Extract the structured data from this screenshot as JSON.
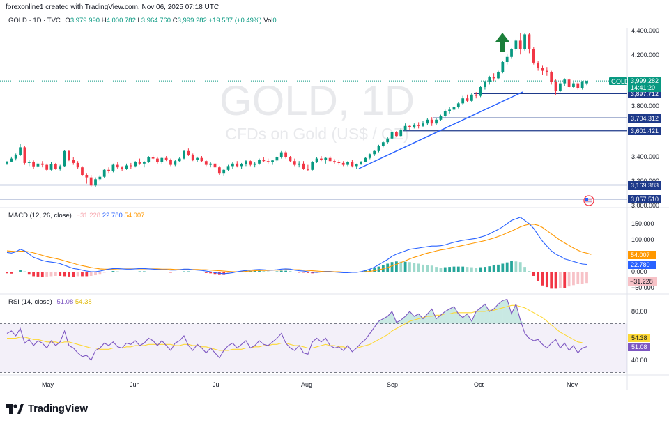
{
  "header": {
    "credit": "forexonline1 created with TradingView.com, Nov 06, 2025 07:18 UTC"
  },
  "price_legend": {
    "symbol": "GOLD · 1D · TVC",
    "open_label": "O",
    "open": "3,979.990",
    "high_label": "H",
    "high": "4,000.782",
    "low_label": "L",
    "low": "3,964.760",
    "close_label": "C",
    "close": "3,999.282",
    "change": "+19.587 (+0.49%)",
    "vol_label": "Vol",
    "vol": "0"
  },
  "watermark": {
    "title": "GOLD, 1D",
    "subtitle": "CFDs on Gold (US$ / OZ)"
  },
  "macd_legend": {
    "title": "MACD (12, 26, close)",
    "hist": "−31.228",
    "macd": "22.780",
    "signal": "54.007"
  },
  "rsi_legend": {
    "title": "RSI (14, close)",
    "rsi": "51.08",
    "ma": "54.38"
  },
  "price_badge": {
    "symbol": "GOLD",
    "price": "3,999.282",
    "countdown": "14:41:20"
  },
  "level_labels": [
    "3,897.712",
    "3,704.312",
    "3,601.421",
    "3,169.383",
    "3,057.510"
  ],
  "price_axis_ticks": [
    "4,400.000",
    "4,200.000",
    "3,800.000",
    "3,400.000",
    "3,200.000",
    "3,000.000"
  ],
  "macd_axis_ticks": [
    "150.000",
    "100.000",
    "0.000",
    "−50.000"
  ],
  "macd_badges": {
    "signal": "54.007",
    "macd": "22.780",
    "hist": "−31.228"
  },
  "rsi_axis_ticks": [
    "80.00",
    "40.00"
  ],
  "rsi_badges": {
    "ma": "54.38",
    "rsi": "51.08"
  },
  "time_labels": [
    "May",
    "Jun",
    "Jul",
    "Aug",
    "Sep",
    "Oct",
    "Nov"
  ],
  "brand": {
    "name": "TradingView"
  },
  "colors": {
    "up": "#089981",
    "down": "#f23645",
    "level_line": "#1e3a8a",
    "trend_line": "#2962ff",
    "arrow": "#1b7f3a",
    "macd_line": "#2962ff",
    "signal_line": "#ff9800",
    "rsi_line": "#7e57c2",
    "rsi_ma": "#fdd835",
    "badge_blue": "#1e3a8a",
    "badge_gold": "#089981"
  },
  "chart_data": {
    "type": "candlestick",
    "symbol": "GOLD",
    "ylim": [
      3000,
      4450
    ],
    "x_start": "2025-04-21",
    "x_end": "2025-11-06",
    "candles": [
      [
        3340,
        3360,
        3330,
        3356
      ],
      [
        3356,
        3395,
        3350,
        3380
      ],
      [
        3380,
        3420,
        3365,
        3410
      ],
      [
        3410,
        3500,
        3400,
        3470
      ],
      [
        3470,
        3480,
        3330,
        3345
      ],
      [
        3345,
        3370,
        3320,
        3355
      ],
      [
        3355,
        3365,
        3300,
        3318
      ],
      [
        3318,
        3350,
        3305,
        3340
      ],
      [
        3340,
        3360,
        3310,
        3330
      ],
      [
        3330,
        3340,
        3280,
        3290
      ],
      [
        3290,
        3350,
        3285,
        3338
      ],
      [
        3338,
        3345,
        3290,
        3300
      ],
      [
        3300,
        3330,
        3285,
        3320
      ],
      [
        3320,
        3450,
        3315,
        3440
      ],
      [
        3440,
        3445,
        3360,
        3372
      ],
      [
        3372,
        3390,
        3330,
        3345
      ],
      [
        3345,
        3360,
        3300,
        3310
      ],
      [
        3310,
        3320,
        3240,
        3250
      ],
      [
        3250,
        3260,
        3180,
        3230
      ],
      [
        3230,
        3250,
        3150,
        3165
      ],
      [
        3165,
        3230,
        3150,
        3215
      ],
      [
        3215,
        3250,
        3200,
        3235
      ],
      [
        3235,
        3300,
        3225,
        3290
      ],
      [
        3290,
        3310,
        3260,
        3280
      ],
      [
        3280,
        3340,
        3270,
        3330
      ],
      [
        3330,
        3350,
        3300,
        3310
      ],
      [
        3310,
        3320,
        3280,
        3300
      ],
      [
        3300,
        3340,
        3290,
        3325
      ],
      [
        3325,
        3345,
        3300,
        3320
      ],
      [
        3320,
        3360,
        3310,
        3350
      ],
      [
        3350,
        3380,
        3330,
        3340
      ],
      [
        3340,
        3360,
        3310,
        3355
      ],
      [
        3355,
        3400,
        3345,
        3390
      ],
      [
        3390,
        3410,
        3370,
        3380
      ],
      [
        3380,
        3395,
        3340,
        3350
      ],
      [
        3350,
        3390,
        3340,
        3385
      ],
      [
        3385,
        3400,
        3360,
        3370
      ],
      [
        3370,
        3380,
        3320,
        3330
      ],
      [
        3330,
        3370,
        3320,
        3360
      ],
      [
        3360,
        3390,
        3350,
        3380
      ],
      [
        3380,
        3450,
        3375,
        3440
      ],
      [
        3440,
        3460,
        3400,
        3410
      ],
      [
        3410,
        3420,
        3360,
        3370
      ],
      [
        3370,
        3395,
        3350,
        3385
      ],
      [
        3385,
        3400,
        3350,
        3360
      ],
      [
        3360,
        3370,
        3320,
        3330
      ],
      [
        3330,
        3350,
        3310,
        3340
      ],
      [
        3340,
        3355,
        3300,
        3310
      ],
      [
        3310,
        3320,
        3250,
        3260
      ],
      [
        3260,
        3300,
        3245,
        3290
      ],
      [
        3290,
        3330,
        3280,
        3320
      ],
      [
        3320,
        3350,
        3300,
        3340
      ],
      [
        3340,
        3360,
        3310,
        3320
      ],
      [
        3320,
        3345,
        3300,
        3335
      ],
      [
        3335,
        3370,
        3320,
        3360
      ],
      [
        3360,
        3365,
        3320,
        3330
      ],
      [
        3330,
        3350,
        3310,
        3340
      ],
      [
        3340,
        3380,
        3330,
        3370
      ],
      [
        3370,
        3390,
        3350,
        3360
      ],
      [
        3360,
        3380,
        3340,
        3350
      ],
      [
        3350,
        3370,
        3330,
        3365
      ],
      [
        3365,
        3400,
        3355,
        3390
      ],
      [
        3390,
        3440,
        3380,
        3430
      ],
      [
        3430,
        3440,
        3380,
        3390
      ],
      [
        3390,
        3400,
        3350,
        3360
      ],
      [
        3360,
        3380,
        3320,
        3330
      ],
      [
        3330,
        3360,
        3310,
        3340
      ],
      [
        3340,
        3360,
        3290,
        3300
      ],
      [
        3300,
        3330,
        3280,
        3290
      ],
      [
        3290,
        3360,
        3285,
        3350
      ],
      [
        3350,
        3390,
        3345,
        3380
      ],
      [
        3380,
        3400,
        3360,
        3370
      ],
      [
        3370,
        3390,
        3340,
        3385
      ],
      [
        3385,
        3400,
        3350,
        3360
      ],
      [
        3360,
        3375,
        3340,
        3350
      ],
      [
        3350,
        3370,
        3330,
        3345
      ],
      [
        3345,
        3360,
        3320,
        3330
      ],
      [
        3330,
        3360,
        3320,
        3350
      ],
      [
        3350,
        3370,
        3310,
        3320
      ],
      [
        3320,
        3340,
        3300,
        3335
      ],
      [
        3335,
        3360,
        3330,
        3355
      ],
      [
        3355,
        3390,
        3350,
        3385
      ],
      [
        3385,
        3420,
        3375,
        3415
      ],
      [
        3415,
        3450,
        3400,
        3440
      ],
      [
        3440,
        3490,
        3430,
        3480
      ],
      [
        3480,
        3520,
        3470,
        3510
      ],
      [
        3510,
        3550,
        3500,
        3540
      ],
      [
        3540,
        3600,
        3530,
        3590
      ],
      [
        3590,
        3600,
        3550,
        3560
      ],
      [
        3560,
        3620,
        3555,
        3610
      ],
      [
        3610,
        3660,
        3600,
        3640
      ],
      [
        3640,
        3650,
        3610,
        3630
      ],
      [
        3630,
        3660,
        3620,
        3650
      ],
      [
        3650,
        3670,
        3620,
        3640
      ],
      [
        3640,
        3680,
        3630,
        3660
      ],
      [
        3660,
        3700,
        3650,
        3690
      ],
      [
        3690,
        3710,
        3640,
        3660
      ],
      [
        3660,
        3700,
        3650,
        3690
      ],
      [
        3690,
        3730,
        3680,
        3720
      ],
      [
        3720,
        3770,
        3710,
        3760
      ],
      [
        3760,
        3790,
        3740,
        3770
      ],
      [
        3770,
        3800,
        3750,
        3790
      ],
      [
        3790,
        3830,
        3780,
        3820
      ],
      [
        3820,
        3880,
        3810,
        3860
      ],
      [
        3860,
        3890,
        3830,
        3840
      ],
      [
        3840,
        3900,
        3830,
        3890
      ],
      [
        3890,
        3910,
        3860,
        3880
      ],
      [
        3880,
        3960,
        3870,
        3950
      ],
      [
        3950,
        4000,
        3930,
        3990
      ],
      [
        3990,
        4040,
        3970,
        4030
      ],
      [
        4030,
        4060,
        4000,
        4020
      ],
      [
        4020,
        4080,
        4010,
        4070
      ],
      [
        4070,
        4160,
        4060,
        4150
      ],
      [
        4150,
        4210,
        4130,
        4190
      ],
      [
        4190,
        4260,
        4180,
        4250
      ],
      [
        4250,
        4330,
        4240,
        4320
      ],
      [
        4320,
        4380,
        4210,
        4250
      ],
      [
        4250,
        4380,
        4240,
        4370
      ],
      [
        4370,
        4380,
        4220,
        4250
      ],
      [
        4250,
        4270,
        4130,
        4145
      ],
      [
        4145,
        4160,
        4080,
        4100
      ],
      [
        4100,
        4120,
        4050,
        4080
      ],
      [
        4080,
        4110,
        4040,
        4070
      ],
      [
        4070,
        4080,
        3970,
        3990
      ],
      [
        3990,
        4010,
        3890,
        3920
      ],
      [
        3920,
        3990,
        3910,
        3980
      ],
      [
        3980,
        4020,
        3960,
        4010
      ],
      [
        4010,
        4020,
        3940,
        3950
      ],
      [
        3950,
        3990,
        3940,
        3980
      ],
      [
        3980,
        3990,
        3930,
        3940
      ],
      [
        3940,
        4000,
        3930,
        3990
      ],
      [
        3980,
        4001,
        3965,
        3999
      ]
    ],
    "horizontal_levels": [
      3897.712,
      3704.312,
      3601.421,
      3169.383,
      3057.51
    ],
    "current_price": 3999.282,
    "macd": {
      "ylim": [
        -70,
        170
      ],
      "macd": [
        60,
        58,
        62,
        70,
        65,
        55,
        45,
        40,
        35,
        32,
        30,
        28,
        25,
        20,
        15,
        10,
        8,
        5,
        2,
        0,
        0,
        2,
        5,
        8,
        10,
        10,
        9,
        8,
        8,
        9,
        10,
        10,
        9,
        8,
        7,
        6,
        6,
        5,
        5,
        6,
        8,
        8,
        6,
        5,
        4,
        2,
        0,
        -3,
        -5,
        -6,
        -5,
        -3,
        0,
        2,
        4,
        5,
        6,
        7,
        6,
        5,
        5,
        6,
        8,
        9,
        8,
        5,
        3,
        2,
        0,
        -2,
        -2,
        -1,
        0,
        0,
        -1,
        -2,
        -3,
        -3,
        -2,
        -2,
        0,
        4,
        8,
        14,
        22,
        30,
        38,
        48,
        55,
        60,
        65,
        70,
        72,
        74,
        76,
        78,
        80,
        80,
        81,
        84,
        88,
        92,
        95,
        98,
        100,
        102,
        104,
        108,
        112,
        118,
        125,
        132,
        140,
        150,
        160,
        165,
        170,
        160,
        150,
        135,
        115,
        95,
        80,
        65,
        55,
        48,
        40,
        36,
        32,
        28,
        24,
        22.78
      ],
      "signal": [
        65,
        64,
        63,
        64,
        64,
        62,
        59,
        55,
        51,
        47,
        44,
        41,
        38,
        34,
        30,
        26,
        22,
        19,
        16,
        13,
        11,
        9,
        8,
        8,
        8,
        9,
        9,
        9,
        9,
        9,
        9,
        9,
        9,
        9,
        9,
        8,
        8,
        8,
        7,
        7,
        7,
        7,
        7,
        7,
        6,
        6,
        5,
        4,
        3,
        2,
        1,
        0,
        0,
        0,
        1,
        2,
        3,
        4,
        4,
        4,
        5,
        5,
        5,
        6,
        6,
        6,
        6,
        5,
        4,
        3,
        2,
        1,
        1,
        1,
        0,
        0,
        -1,
        -1,
        -1,
        -1,
        -1,
        0,
        1,
        3,
        6,
        9,
        13,
        18,
        23,
        29,
        34,
        40,
        45,
        49,
        54,
        58,
        61,
        65,
        68,
        70,
        73,
        76,
        79,
        82,
        85,
        88,
        91,
        94,
        97,
        101,
        105,
        110,
        115,
        121,
        127,
        133,
        140,
        145,
        148,
        148,
        145,
        138,
        128,
        118,
        108,
        98,
        90,
        82,
        74,
        67,
        61,
        58,
        54.007
      ]
    },
    "rsi": {
      "ylim": [
        20,
        100
      ],
      "upper_band": 70,
      "lower_band": 30,
      "mid": 50,
      "rsi": [
        62,
        64,
        60,
        66,
        54,
        57,
        52,
        56,
        54,
        50,
        56,
        52,
        55,
        64,
        52,
        50,
        46,
        43,
        44,
        40,
        48,
        50,
        54,
        52,
        55,
        51,
        50,
        54,
        53,
        56,
        52,
        54,
        58,
        56,
        52,
        56,
        52,
        48,
        54,
        56,
        60,
        52,
        48,
        53,
        50,
        46,
        50,
        46,
        42,
        48,
        52,
        54,
        50,
        53,
        56,
        50,
        52,
        56,
        53,
        52,
        55,
        58,
        62,
        54,
        50,
        48,
        52,
        46,
        45,
        55,
        58,
        55,
        58,
        52,
        50,
        51,
        48,
        52,
        47,
        50,
        54,
        57,
        62,
        67,
        72,
        74,
        76,
        80,
        71,
        73,
        76,
        80,
        76,
        78,
        74,
        78,
        82,
        74,
        77,
        80,
        82,
        84,
        78,
        75,
        78,
        72,
        80,
        83,
        86,
        80,
        82,
        86,
        89,
        90,
        78,
        86,
        73,
        62,
        58,
        56,
        57,
        53,
        50,
        54,
        57,
        50,
        54,
        48,
        52,
        46,
        50,
        51.08
      ],
      "ma": [
        58,
        58,
        58,
        59,
        59,
        58,
        57,
        57,
        56,
        55,
        55,
        55,
        54,
        55,
        55,
        54,
        53,
        52,
        51,
        50,
        50,
        49,
        49,
        49,
        50,
        50,
        50,
        51,
        51,
        52,
        52,
        52,
        53,
        53,
        53,
        53,
        53,
        53,
        52,
        52,
        53,
        53,
        52,
        52,
        51,
        51,
        50,
        49,
        48,
        48,
        48,
        49,
        49,
        49,
        50,
        50,
        51,
        51,
        52,
        52,
        53,
        53,
        54,
        54,
        53,
        52,
        52,
        51,
        50,
        50,
        51,
        52,
        53,
        52,
        52,
        51,
        51,
        50,
        50,
        50,
        51,
        52,
        53,
        55,
        57,
        59,
        61,
        64,
        66,
        68,
        70,
        72,
        73,
        74,
        75,
        76,
        76,
        77,
        77,
        78,
        78,
        79,
        79,
        79,
        79,
        79,
        80,
        80,
        80,
        81,
        81,
        82,
        83,
        84,
        85,
        85,
        84,
        83,
        81,
        79,
        77,
        75,
        72,
        69,
        66,
        63,
        61,
        59,
        57,
        55,
        54.38
      ]
    }
  }
}
